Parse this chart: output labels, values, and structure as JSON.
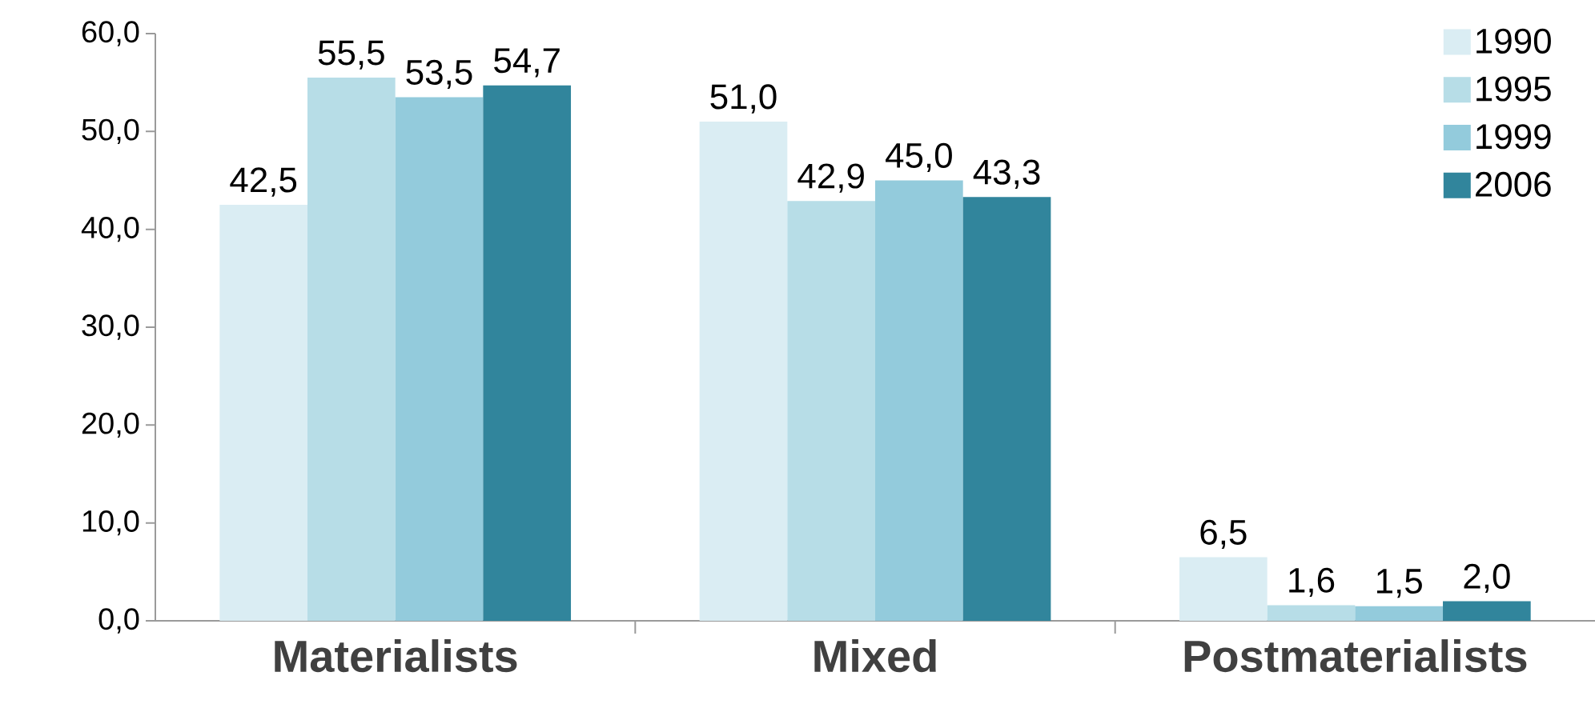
{
  "chart_data": {
    "type": "bar",
    "categories": [
      "Materialists",
      "Mixed",
      "Postmaterialists"
    ],
    "series": [
      {
        "name": "1990",
        "color": "#daedf3",
        "values": [
          42.5,
          51.0,
          6.5
        ],
        "value_labels": [
          "42,5",
          "51,0",
          "6,5"
        ]
      },
      {
        "name": "1995",
        "color": "#b7dde7",
        "values": [
          55.5,
          42.9,
          1.6
        ],
        "value_labels": [
          "55,5",
          "42,9",
          "1,6"
        ]
      },
      {
        "name": "1999",
        "color": "#93cbdc",
        "values": [
          53.5,
          45.0,
          1.5
        ],
        "value_labels": [
          "53,5",
          "45,0",
          "1,5"
        ]
      },
      {
        "name": "2006",
        "color": "#31859c",
        "values": [
          54.7,
          43.3,
          2.0
        ],
        "value_labels": [
          "54,7",
          "43,3",
          "2,0"
        ]
      }
    ],
    "ylim": [
      0,
      60
    ],
    "yticks": [
      {
        "value": 0,
        "label": "0,0"
      },
      {
        "value": 10,
        "label": "10,0"
      },
      {
        "value": 20,
        "label": "20,0"
      },
      {
        "value": 30,
        "label": "30,0"
      },
      {
        "value": 40,
        "label": "40,0"
      },
      {
        "value": 50,
        "label": "50,0"
      },
      {
        "value": 60,
        "label": "60,0"
      }
    ],
    "legend": "top right"
  }
}
